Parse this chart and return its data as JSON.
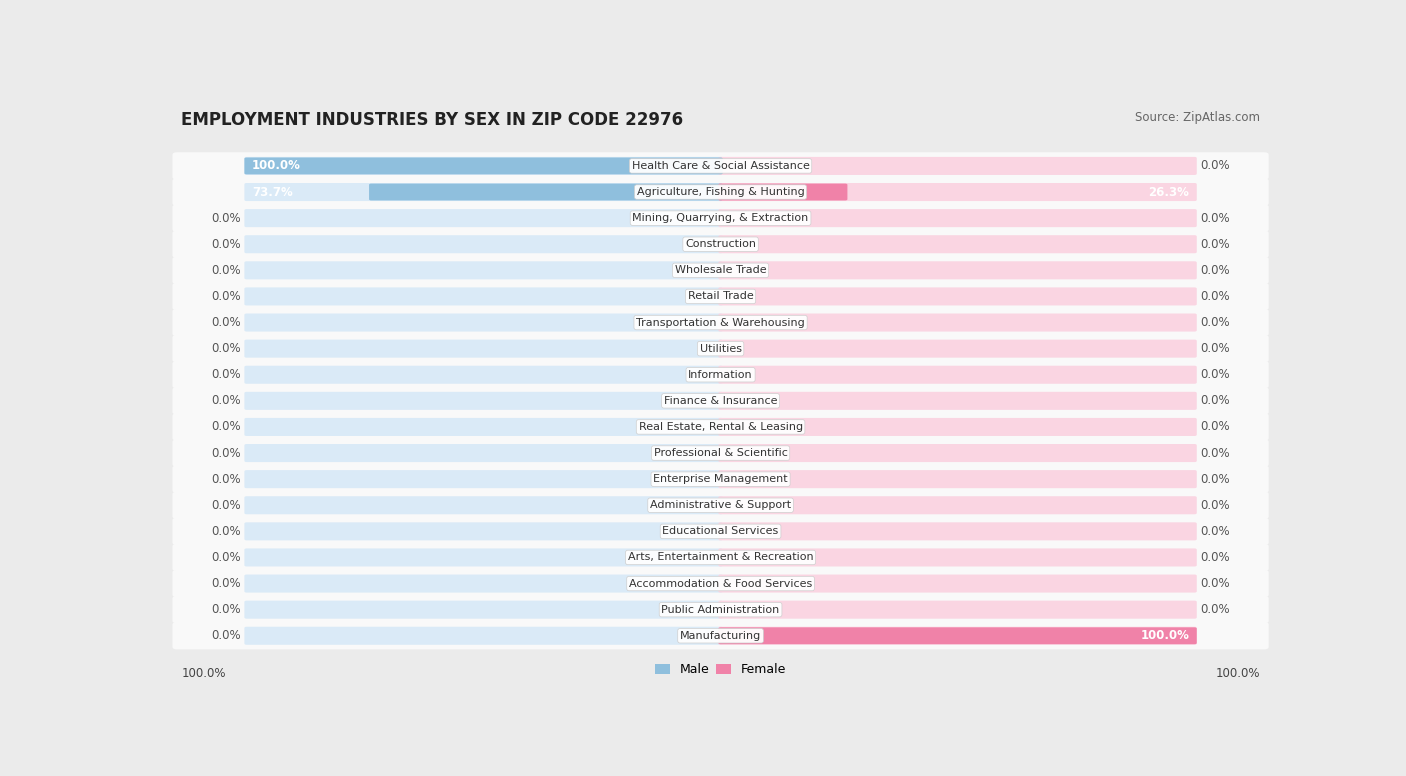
{
  "title": "EMPLOYMENT INDUSTRIES BY SEX IN ZIP CODE 22976",
  "source": "Source: ZipAtlas.com",
  "industries": [
    "Health Care & Social Assistance",
    "Agriculture, Fishing & Hunting",
    "Mining, Quarrying, & Extraction",
    "Construction",
    "Wholesale Trade",
    "Retail Trade",
    "Transportation & Warehousing",
    "Utilities",
    "Information",
    "Finance & Insurance",
    "Real Estate, Rental & Leasing",
    "Professional & Scientific",
    "Enterprise Management",
    "Administrative & Support",
    "Educational Services",
    "Arts, Entertainment & Recreation",
    "Accommodation & Food Services",
    "Public Administration",
    "Manufacturing"
  ],
  "male_pct": [
    100.0,
    73.7,
    0.0,
    0.0,
    0.0,
    0.0,
    0.0,
    0.0,
    0.0,
    0.0,
    0.0,
    0.0,
    0.0,
    0.0,
    0.0,
    0.0,
    0.0,
    0.0,
    0.0
  ],
  "female_pct": [
    0.0,
    26.3,
    0.0,
    0.0,
    0.0,
    0.0,
    0.0,
    0.0,
    0.0,
    0.0,
    0.0,
    0.0,
    0.0,
    0.0,
    0.0,
    0.0,
    0.0,
    0.0,
    100.0
  ],
  "male_color": "#8fbfdd",
  "female_color": "#f082a8",
  "bg_color": "#ebebeb",
  "row_bg": "#f9f9f9",
  "bar_bg_male": "#daeaf7",
  "bar_bg_female": "#fad5e2",
  "title_fontsize": 12,
  "source_fontsize": 8.5,
  "label_fontsize": 8.5,
  "industry_fontsize": 8.0,
  "legend_fontsize": 9
}
